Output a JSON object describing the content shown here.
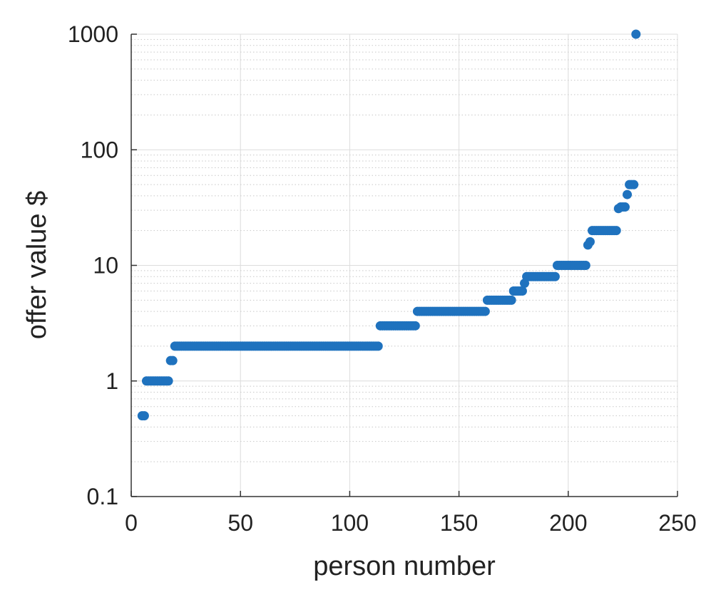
{
  "chart_data": {
    "type": "scatter",
    "title": "",
    "xlabel": "person number",
    "ylabel": "offer value $",
    "xlim": [
      0,
      250
    ],
    "ylim": [
      0.1,
      1000
    ],
    "yscale": "log",
    "grid": true,
    "legend": "none",
    "colors": {
      "marker": "#1f72be",
      "axis": "#333333",
      "grid": "#dcdcdc",
      "minor_grid": "#c8c8c8"
    },
    "xticks": [
      {
        "value": 0,
        "label": "0"
      },
      {
        "value": 50,
        "label": "50"
      },
      {
        "value": 100,
        "label": "100"
      },
      {
        "value": 150,
        "label": "150"
      },
      {
        "value": 200,
        "label": "200"
      },
      {
        "value": 250,
        "label": "250"
      }
    ],
    "yticks": [
      {
        "value": 0.1,
        "label": "0.1"
      },
      {
        "value": 1,
        "label": "1"
      },
      {
        "value": 10,
        "label": "10"
      },
      {
        "value": 100,
        "label": "100"
      },
      {
        "value": 1000,
        "label": "1000"
      }
    ],
    "runs": [
      {
        "x_start": 5,
        "x_end": 6,
        "y": 0.5
      },
      {
        "x_start": 7,
        "x_end": 17,
        "y": 1
      },
      {
        "x_start": 18,
        "x_end": 19,
        "y": 1.5
      },
      {
        "x_start": 20,
        "x_end": 113,
        "y": 2
      },
      {
        "x_start": 114,
        "x_end": 130,
        "y": 3
      },
      {
        "x_start": 131,
        "x_end": 162,
        "y": 4
      },
      {
        "x_start": 163,
        "x_end": 174,
        "y": 5
      },
      {
        "x_start": 175,
        "x_end": 179,
        "y": 6
      },
      {
        "x_start": 180,
        "x_end": 180,
        "y": 7
      },
      {
        "x_start": 181,
        "x_end": 194,
        "y": 8
      },
      {
        "x_start": 195,
        "x_end": 208,
        "y": 10
      },
      {
        "x_start": 209,
        "x_end": 209,
        "y": 15
      },
      {
        "x_start": 210,
        "x_end": 210,
        "y": 16
      },
      {
        "x_start": 211,
        "x_end": 222,
        "y": 20
      },
      {
        "x_start": 223,
        "x_end": 223,
        "y": 31
      },
      {
        "x_start": 224,
        "x_end": 226,
        "y": 32
      },
      {
        "x_start": 227,
        "x_end": 227,
        "y": 41
      },
      {
        "x_start": 228,
        "x_end": 230,
        "y": 50
      },
      {
        "x_start": 231,
        "x_end": 231,
        "y": 1000
      }
    ]
  }
}
